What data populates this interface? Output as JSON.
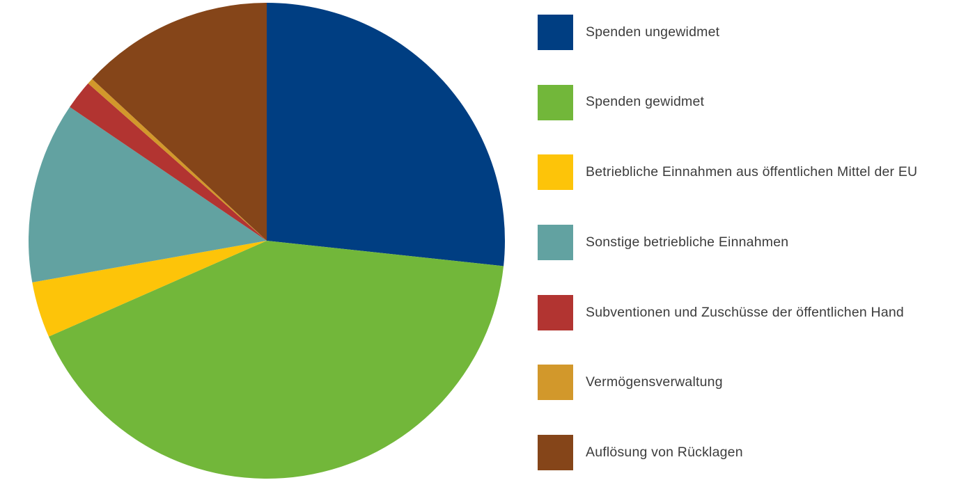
{
  "canvas": {
    "background": "#ffffff",
    "text_color": "#3c3c3c"
  },
  "chart_data": {
    "type": "pie",
    "title": "",
    "units": "percent_of_total",
    "start_angle_deg": 0,
    "direction": "clockwise",
    "legend_position": "right",
    "slices": [
      {
        "label": "Spenden ungewidmet",
        "value": 26.7,
        "color": "#003e82"
      },
      {
        "label": "Spenden gewidmet",
        "value": 41.7,
        "color": "#72b73a"
      },
      {
        "label": "Betriebliche Einnahmen aus öffentlichen Mittel der EU",
        "value": 3.8,
        "color": "#fdc409"
      },
      {
        "label": "Sonstige betriebliche Einnahmen",
        "value": 12.3,
        "color": "#62a2a1"
      },
      {
        "label": "Subventionen und Zuschüsse der öffentlichen Hand",
        "value": 2.0,
        "color": "#b23431"
      },
      {
        "label": "Vermögensverwaltung",
        "value": 0.4,
        "color": "#d2982b"
      },
      {
        "label": "Auflösung von Rücklagen",
        "value": 13.1,
        "color": "#854519"
      }
    ]
  }
}
